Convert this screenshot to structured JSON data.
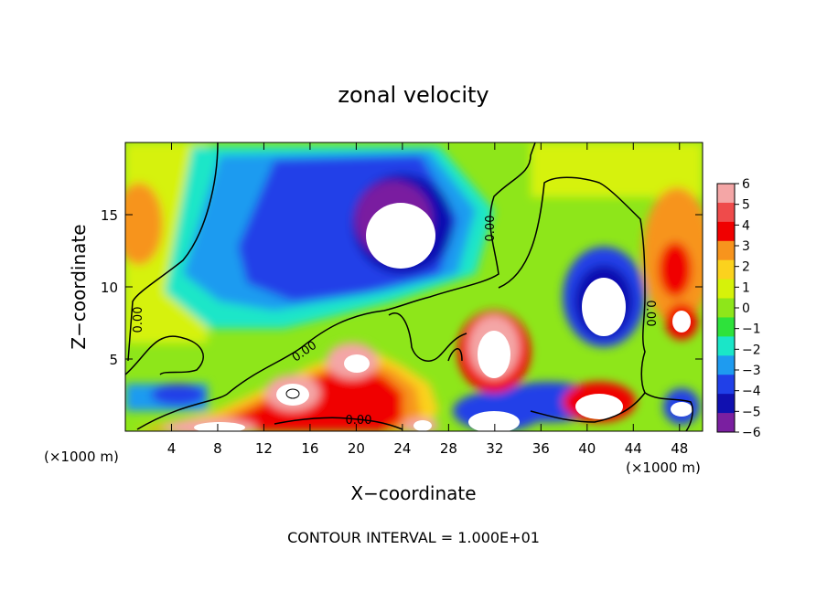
{
  "chart_data": {
    "type": "heatmap",
    "title": "zonal velocity",
    "xlabel": "X−coordinate",
    "ylabel": "Z−coordinate",
    "x_unit_left": "(×1000 m)",
    "x_unit_right": "(×1000 m)",
    "xlim": [
      0,
      50
    ],
    "ylim": [
      0,
      20
    ],
    "x_ticks": [
      4,
      8,
      12,
      16,
      20,
      24,
      28,
      32,
      36,
      40,
      44,
      48
    ],
    "y_ticks": [
      5,
      10,
      15
    ],
    "colorbar": {
      "labels": [
        "6",
        "5",
        "4",
        "3",
        "2",
        "1",
        "0",
        "−1",
        "−2",
        "−3",
        "−4",
        "−5",
        "−6"
      ],
      "range": [
        -6,
        6
      ],
      "colors": [
        "#f4a6a6",
        "#ef4b4b",
        "#f00000",
        "#f7941d",
        "#fbd21e",
        "#d6f20a",
        "#8ee61a",
        "#2ee23b",
        "#1ae6c8",
        "#1e9bf0",
        "#2040e8",
        "#1010b0",
        "#7a1fa0"
      ]
    },
    "contour_labels": [
      "0.00",
      "0.00",
      "0.00",
      "0.00",
      "0.00"
    ],
    "footer": "CONTOUR INTERVAL = 1.000E+01"
  }
}
